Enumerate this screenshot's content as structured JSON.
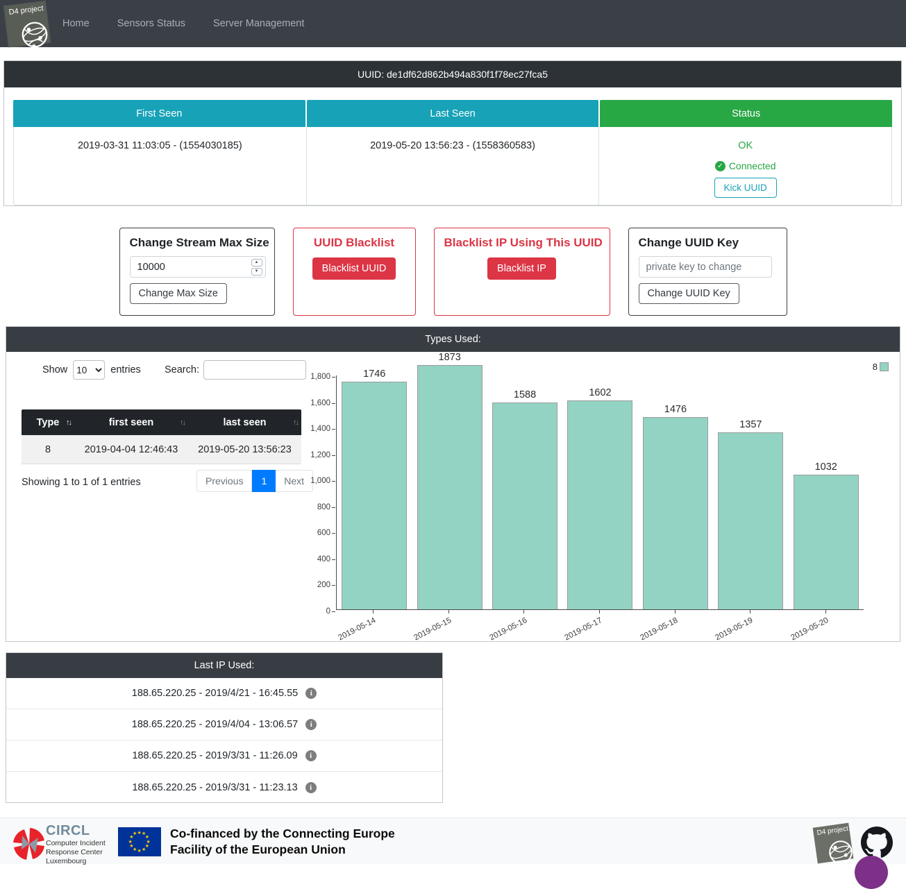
{
  "navbar": {
    "brand": "D4 project",
    "items": [
      {
        "label": "Home"
      },
      {
        "label": "Sensors Status"
      },
      {
        "label": "Server Management"
      }
    ]
  },
  "uuid_card": {
    "title": "UUID: de1df62d862b494a830f1f78ec27fca5",
    "headers": [
      "First Seen",
      "Last Seen",
      "Status"
    ],
    "first_seen": "2019-03-31 11:03:05 - (1554030185)",
    "last_seen": "2019-05-20 13:56:23 - (1558360583)",
    "status_text": "OK",
    "connected_label": "Connected",
    "kick_button": "Kick UUID"
  },
  "panels": {
    "max_size": {
      "title": "Change Stream Max Size",
      "input_value": "10000",
      "button": "Change Max Size"
    },
    "uuid_blacklist": {
      "title": "UUID Blacklist",
      "button": "Blacklist UUID"
    },
    "ip_blacklist": {
      "title": "Blacklist IP Using This UUID",
      "button": "Blacklist IP"
    },
    "change_key": {
      "title": "Change UUID Key",
      "placeholder": "private key to change",
      "button": "Change UUID Key"
    }
  },
  "types_used": {
    "title": "Types Used:",
    "datatable": {
      "show_label": "Show",
      "show_value": "10",
      "entries_label": "entries",
      "search_label": "Search:",
      "columns": [
        "Type",
        "first seen",
        "last seen"
      ],
      "rows": [
        [
          "8",
          "2019-04-04 12:46:43",
          "2019-05-20 13:56:23"
        ]
      ],
      "info": "Showing 1 to 1 of 1 entries",
      "pagination": {
        "previous": "Previous",
        "page": "1",
        "next": "Next"
      }
    }
  },
  "chart_data": {
    "type": "bar",
    "categories": [
      "2019-05-14",
      "2019-05-15",
      "2019-05-16",
      "2019-05-17",
      "2019-05-18",
      "2019-05-19",
      "2019-05-20"
    ],
    "series": [
      {
        "name": "8",
        "values": [
          1746,
          1873,
          1588,
          1602,
          1476,
          1357,
          1032
        ]
      }
    ],
    "title": "",
    "xlabel": "",
    "ylabel": "",
    "ylim": [
      0,
      1800
    ],
    "ytick_step": 200,
    "grid": false,
    "legend_position": "top-right",
    "bar_color": "#93d3c3"
  },
  "last_ip": {
    "title": "Last IP Used:",
    "rows": [
      "188.65.220.25 - 2019/4/21 - 16:45.55",
      "188.65.220.25 - 2019/4/04 - 13:06.57",
      "188.65.220.25 - 2019/3/31 - 11:26.09",
      "188.65.220.25 - 2019/3/31 - 11:23.13"
    ]
  },
  "footer": {
    "circl_name": "CIRCL",
    "circl_desc_lines": [
      "Computer Incident",
      "Response Center",
      "Luxembourg"
    ],
    "cofinanced_lines": [
      "Co-financed by the Connecting Europe",
      "Facility of the European Union"
    ],
    "d4_brand": "D4 project"
  },
  "colors": {
    "navbar_bg": "#3a4046",
    "header_dark": "#2d3237",
    "teal": "#17a2b8",
    "green": "#28a745",
    "red": "#dc3545",
    "pagination_blue": "#007bff",
    "bar_fill": "#93d3c3",
    "chat_purple": "#7d3087"
  }
}
